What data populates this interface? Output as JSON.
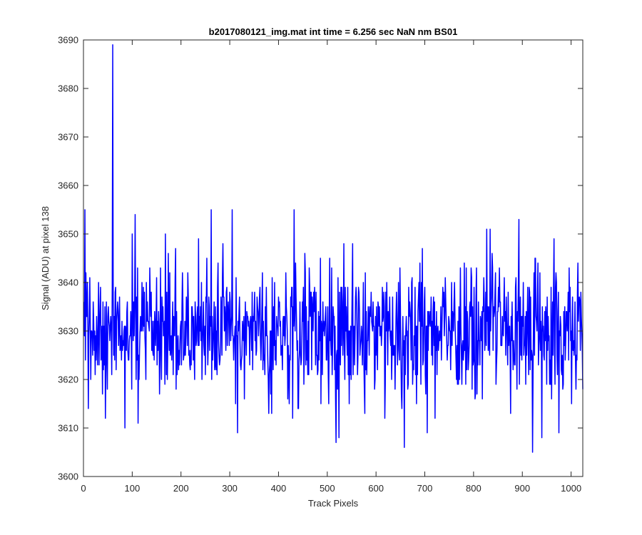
{
  "chart_data": {
    "type": "line",
    "title": "b2017080121_img.mat int time = 6.256 sec  NaN nm BS01",
    "xlabel": "Track Pixels",
    "ylabel": "Signal (ADU) at pixel 138",
    "xlim": [
      0,
      1024
    ],
    "ylim": [
      3600,
      3690
    ],
    "xticks": [
      0,
      100,
      200,
      300,
      400,
      500,
      600,
      700,
      800,
      900,
      1000
    ],
    "yticks": [
      3600,
      3610,
      3620,
      3630,
      3640,
      3650,
      3660,
      3670,
      3680,
      3690
    ],
    "grid": false,
    "legend": "none",
    "series": [
      {
        "color": "#0000ff",
        "noise_seed": 20170801,
        "noise_mean": 3630,
        "noise_std": 7,
        "noise_min": 3605,
        "noise_max": 3655,
        "start_x": 1,
        "end_x": 1024,
        "features": [
          {
            "x": 1,
            "y": 3636
          },
          {
            "x": 3,
            "y": 3655
          },
          {
            "x": 10,
            "y": 3614
          },
          {
            "x": 60,
            "y": 3689
          },
          {
            "x": 62,
            "y": 3625
          },
          {
            "x": 85,
            "y": 3610
          },
          {
            "x": 100,
            "y": 3650
          },
          {
            "x": 106,
            "y": 3654
          },
          {
            "x": 112,
            "y": 3611
          },
          {
            "x": 168,
            "y": 3650
          },
          {
            "x": 305,
            "y": 3655
          },
          {
            "x": 380,
            "y": 3613
          },
          {
            "x": 432,
            "y": 3655
          },
          {
            "x": 518,
            "y": 3607
          },
          {
            "x": 658,
            "y": 3606
          },
          {
            "x": 834,
            "y": 3651
          },
          {
            "x": 921,
            "y": 3605
          },
          {
            "x": 927,
            "y": 3645
          },
          {
            "x": 940,
            "y": 3608
          },
          {
            "x": 1023,
            "y": 3626
          }
        ]
      }
    ]
  }
}
